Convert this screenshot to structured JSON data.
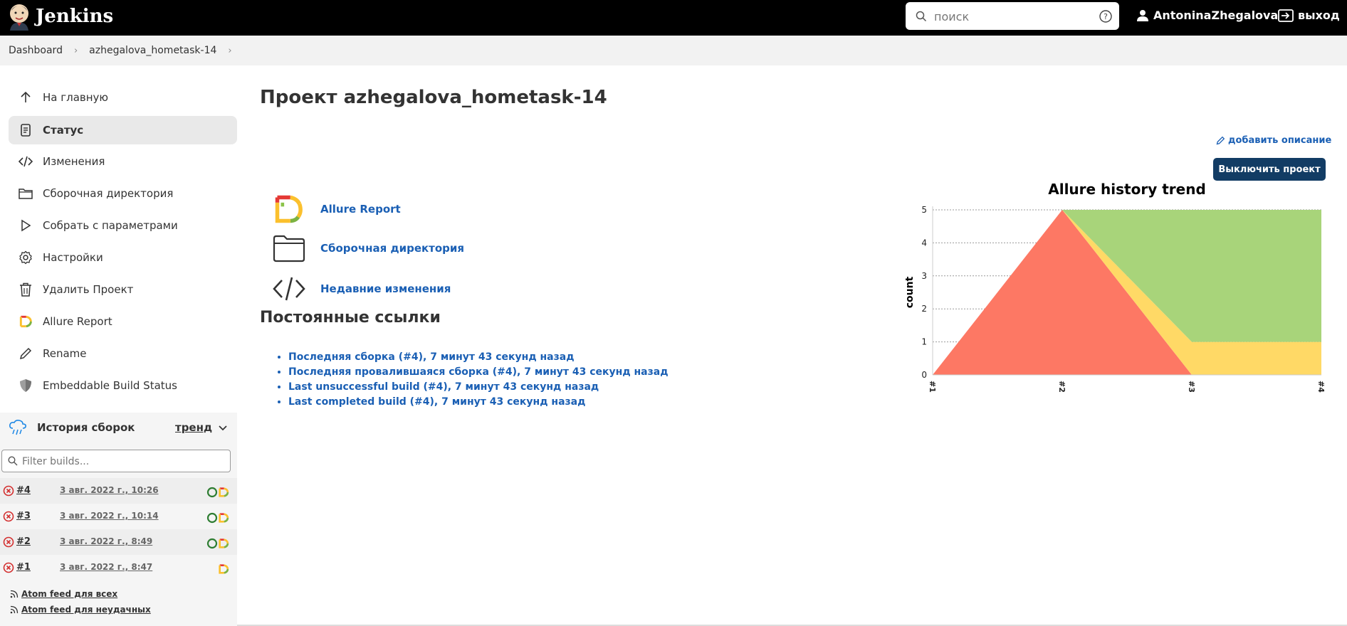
{
  "header": {
    "brand": "Jenkins",
    "search_placeholder": "поиск",
    "user": "AntoninaZhegalova",
    "logout": "выход"
  },
  "breadcrumb": [
    "Dashboard",
    "azhegalova_hometask-14"
  ],
  "sidebar": {
    "items": [
      {
        "label": "На главную",
        "icon": "arrow-up-icon"
      },
      {
        "label": "Статус",
        "icon": "status-document-icon",
        "active": true
      },
      {
        "label": "Изменения",
        "icon": "code-icon"
      },
      {
        "label": "Сборочная директория",
        "icon": "folder-icon"
      },
      {
        "label": "Собрать с параметрами",
        "icon": "play-icon"
      },
      {
        "label": "Настройки",
        "icon": "gear-icon"
      },
      {
        "label": "Удалить Проект",
        "icon": "trash-icon"
      },
      {
        "label": "Allure Report",
        "icon": "allure-icon"
      },
      {
        "label": "Rename",
        "icon": "pencil-icon"
      },
      {
        "label": "Embeddable Build Status",
        "icon": "shield-icon"
      }
    ]
  },
  "history": {
    "title": "История сборок",
    "trend": "тренд",
    "filter_placeholder": "Filter builds...",
    "builds": [
      {
        "number": "#4",
        "date": "3 авг. 2022 г., 10:26"
      },
      {
        "number": "#3",
        "date": "3 авг. 2022 г., 10:14"
      },
      {
        "number": "#2",
        "date": "3 авг. 2022 г., 8:49"
      },
      {
        "number": "#1",
        "date": "3 авг. 2022 г., 8:47"
      }
    ],
    "feeds": [
      "Atom feed для всех",
      "Atom feed для неудачных"
    ]
  },
  "main": {
    "title": "Проект azhegalova_hometask-14",
    "add_description": "добавить описание",
    "disable_button": "Выключить проект",
    "links": [
      "Allure Report",
      "Сборочная директория",
      "Недавние изменения"
    ],
    "permalinks_title": "Постоянные ссылки",
    "permalinks": [
      "Последняя сборка (#4), 7 минут 43 секунд назад",
      "Последняя провалившаяся сборка (#4), 7 минут 43 секунд назад",
      "Last unsuccessful build (#4), 7 минут 43 секунд назад",
      "Last completed build (#4), 7 минут 43 секунд назад"
    ]
  },
  "chart_data": {
    "type": "area",
    "title": "Allure history trend",
    "ylabel": "count",
    "xlabel": "",
    "categories": [
      "#1",
      "#2",
      "#3",
      "#4"
    ],
    "ylim": [
      0,
      5
    ],
    "yticks": [
      "0",
      "1",
      "2",
      "3",
      "4",
      "5"
    ],
    "stacked": true,
    "colors": {
      "failed": "#fd7864",
      "broken": "#ffd966",
      "passed": "#a8d47a"
    },
    "series": [
      {
        "values": [
          0,
          5,
          0,
          0
        ],
        "color": "#fd7864"
      },
      {
        "values": [
          0,
          0,
          1,
          1
        ],
        "color": "#ffd966"
      },
      {
        "values": [
          0,
          0,
          4,
          4
        ],
        "color": "#a8d47a"
      }
    ]
  }
}
